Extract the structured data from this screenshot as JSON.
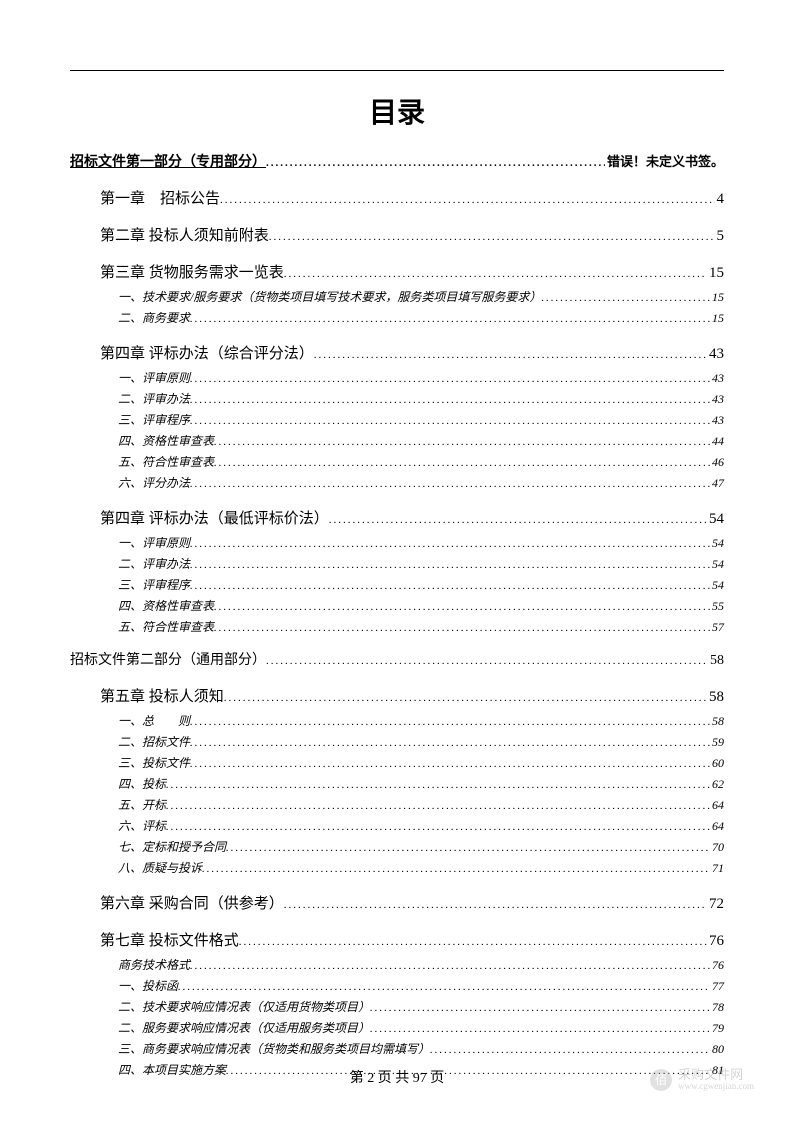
{
  "title": "目录",
  "footer": {
    "text": "第 2 页 共 97 页"
  },
  "watermark": {
    "label": "采购文件网",
    "url": "www.cgwenjian.com",
    "icon": "佰"
  },
  "toc": {
    "part1": {
      "label": "招标文件第一部分（专用部分）",
      "page": "错误！未定义书签。"
    },
    "chapters": [
      {
        "label": "第一章　招标公告",
        "page": "4",
        "level": 1
      },
      {
        "label": "第二章 投标人须知前附表",
        "page": "5",
        "level": 1
      },
      {
        "label": "第三章 货物服务需求一览表",
        "page": "15",
        "level": 1
      },
      {
        "label": "一、技术要求/服务要求（货物类项目填写技术要求，服务类项目填写服务要求）",
        "page": "15",
        "level": 2
      },
      {
        "label": "二、商务要求",
        "page": "15",
        "level": 2
      },
      {
        "label": "第四章 评标办法（综合评分法）",
        "page": "43",
        "level": 1
      },
      {
        "label": "一、评审原则",
        "page": "43",
        "level": 2
      },
      {
        "label": "二、评审办法",
        "page": "43",
        "level": 2
      },
      {
        "label": "三、评审程序",
        "page": "43",
        "level": 2
      },
      {
        "label": "四、资格性审查表",
        "page": "44",
        "level": 2
      },
      {
        "label": "五、符合性审查表",
        "page": "46",
        "level": 2
      },
      {
        "label": "六、评分办法",
        "page": "47",
        "level": 2
      },
      {
        "label": "第四章 评标办法（最低评标价法）",
        "page": "54",
        "level": 1
      },
      {
        "label": "一、评审原则",
        "page": "54",
        "level": 2
      },
      {
        "label": "二、评审办法",
        "page": "54",
        "level": 2
      },
      {
        "label": "三、评审程序",
        "page": "54",
        "level": 2
      },
      {
        "label": "四、资格性审查表",
        "page": "55",
        "level": 2
      },
      {
        "label": "五、符合性审查表",
        "page": "57",
        "level": 2
      }
    ],
    "part2": {
      "label": "招标文件第二部分（通用部分）",
      "page": "58"
    },
    "chapters2": [
      {
        "label": "第五章 投标人须知",
        "page": "58",
        "level": 1
      },
      {
        "label": "一、总　　则",
        "page": "58",
        "level": 2
      },
      {
        "label": "二、招标文件",
        "page": "59",
        "level": 2
      },
      {
        "label": "三、投标文件",
        "page": "60",
        "level": 2
      },
      {
        "label": "四、投标",
        "page": "62",
        "level": 2
      },
      {
        "label": "五、开标",
        "page": "64",
        "level": 2
      },
      {
        "label": "六、评标",
        "page": "64",
        "level": 2
      },
      {
        "label": "七、定标和授予合同",
        "page": "70",
        "level": 2
      },
      {
        "label": "八、质疑与投诉",
        "page": "71",
        "level": 2
      },
      {
        "label": "第六章 采购合同（供参考）",
        "page": "72",
        "level": 1
      },
      {
        "label": "第七章 投标文件格式",
        "page": "76",
        "level": 1
      },
      {
        "label": "商务技术格式",
        "page": "76",
        "level": 2
      },
      {
        "label": "一、投标函",
        "page": "77",
        "level": 2
      },
      {
        "label": "二、技术要求响应情况表（仅适用货物类项目）",
        "page": "78",
        "level": 2
      },
      {
        "label": "二、服务要求响应情况表（仅适用服务类项目）",
        "page": "79",
        "level": 2
      },
      {
        "label": "三、商务要求响应情况表（货物类和服务类项目均需填写）",
        "page": "80",
        "level": 2
      },
      {
        "label": "四、本项目实施方案",
        "page": "81",
        "level": 2
      }
    ]
  }
}
